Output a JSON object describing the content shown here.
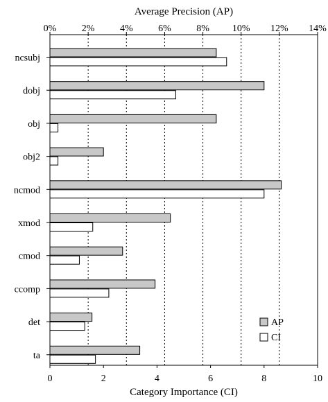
{
  "chart_data": {
    "type": "bar",
    "orientation": "horizontal",
    "title": "",
    "top_axis": {
      "label": "Average Precision (AP)",
      "range": [
        0,
        14
      ],
      "ticks": [
        0,
        2,
        4,
        6,
        8,
        10,
        12,
        14
      ],
      "tick_labels": [
        "0%",
        "2%",
        "4%",
        "6%",
        "8%",
        "10%",
        "12%",
        "14%"
      ]
    },
    "bottom_axis": {
      "label": "Category Importance (CI)",
      "range": [
        0,
        10
      ],
      "ticks": [
        0,
        2,
        4,
        6,
        8,
        10
      ],
      "tick_labels": [
        "0",
        "2",
        "4",
        "6",
        "8",
        "10"
      ]
    },
    "categories": [
      "ncsubj",
      "dobj",
      "obj",
      "obj2",
      "ncmod",
      "xmod",
      "cmod",
      "ccomp",
      "det",
      "ta"
    ],
    "series": [
      {
        "name": "AP",
        "axis": "top",
        "unit": "%",
        "color": "#c8c8c8",
        "values": [
          8.7,
          11.2,
          8.7,
          2.8,
          12.1,
          6.3,
          3.8,
          5.5,
          2.2,
          4.7
        ]
      },
      {
        "name": "CI",
        "axis": "bottom",
        "color": "#ffffff",
        "values": [
          6.6,
          4.7,
          0.3,
          0.3,
          8.0,
          1.6,
          1.1,
          2.2,
          1.3,
          1.7
        ]
      }
    ],
    "grid": {
      "vertical": "dotted",
      "at_top_ticks": [
        2,
        4,
        6,
        8,
        10,
        12
      ]
    },
    "legend_position": "bottom-right"
  }
}
